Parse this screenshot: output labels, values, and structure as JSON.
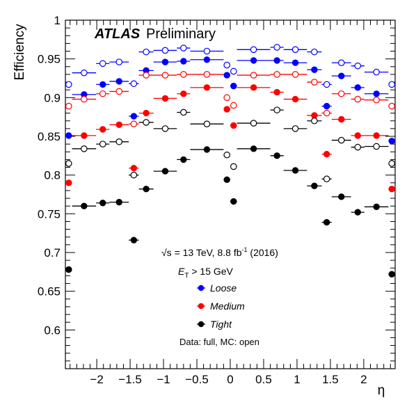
{
  "chart_data": {
    "type": "scatter",
    "title": "",
    "brand": "ATLAS",
    "subtitle": "Preliminary",
    "xlabel": "η",
    "ylabel": "Efficiency",
    "xlim": [
      -2.47,
      2.47
    ],
    "ylim": [
      0.55,
      1.0
    ],
    "x_ticks": [
      -2,
      -1.5,
      -1,
      -0.5,
      0,
      0.5,
      1,
      1.5,
      2
    ],
    "x_tick_labels": [
      "−2",
      "−1.5",
      "−1",
      "−0.5",
      "0",
      "0.5",
      "1",
      "1.5",
      "2"
    ],
    "y_ticks": [
      0.6,
      0.65,
      0.7,
      0.75,
      0.8,
      0.85,
      0.9,
      0.95,
      1.0
    ],
    "y_tick_labels": [
      "0.6",
      "0.65",
      "0.7",
      "0.75",
      "0.8",
      "0.85",
      "0.9",
      "0.95",
      "1"
    ],
    "grid": false,
    "bins": [
      [
        -2.47,
        -2.37
      ],
      [
        -2.37,
        -2.01
      ],
      [
        -2.01,
        -1.81
      ],
      [
        -1.81,
        -1.52
      ],
      [
        -1.52,
        -1.37
      ],
      [
        -1.37,
        -1.15
      ],
      [
        -1.15,
        -0.8
      ],
      [
        -0.8,
        -0.6
      ],
      [
        -0.6,
        -0.1
      ],
      [
        -0.1,
        0.0
      ],
      [
        0.0,
        0.1
      ],
      [
        0.1,
        0.6
      ],
      [
        0.6,
        0.8
      ],
      [
        0.8,
        1.15
      ],
      [
        1.15,
        1.37
      ],
      [
        1.37,
        1.52
      ],
      [
        1.52,
        1.81
      ],
      [
        1.81,
        2.01
      ],
      [
        2.01,
        2.37
      ],
      [
        2.37,
        2.47
      ]
    ],
    "annotations": {
      "energy": "√s = 13 TeV, 8.8 fb",
      "lumi_exp": "-1",
      "year": " (2016)",
      "cut_var": "E",
      "cut_sub": "T",
      "cut_rest": " > 15 GeV",
      "footer": "Data: full, MC: open"
    },
    "series": [
      {
        "name": "Loose",
        "sample": "data",
        "color": "#0000ff",
        "marker": "filled",
        "values": [
          0.851,
          0.904,
          0.917,
          0.921,
          0.876,
          0.935,
          0.946,
          0.947,
          0.949,
          0.929,
          0.915,
          0.948,
          0.948,
          0.945,
          0.936,
          0.889,
          0.928,
          0.913,
          0.905,
          0.844
        ]
      },
      {
        "name": "Loose",
        "sample": "mc",
        "color": "#0000ff",
        "marker": "open",
        "values": [
          0.917,
          0.932,
          0.944,
          0.946,
          0.918,
          0.959,
          0.961,
          0.964,
          0.96,
          0.942,
          0.934,
          0.962,
          0.965,
          0.962,
          0.959,
          0.917,
          0.945,
          0.941,
          0.933,
          0.917
        ]
      },
      {
        "name": "Medium",
        "sample": "data",
        "color": "#ff0000",
        "marker": "filled",
        "values": [
          0.79,
          0.851,
          0.859,
          0.865,
          0.809,
          0.88,
          0.899,
          0.905,
          0.913,
          0.885,
          0.864,
          0.913,
          0.907,
          0.898,
          0.877,
          0.827,
          0.872,
          0.851,
          0.851,
          0.782
        ]
      },
      {
        "name": "Medium",
        "sample": "mc",
        "color": "#ff0000",
        "marker": "open",
        "values": [
          0.889,
          0.898,
          0.905,
          0.908,
          0.866,
          0.929,
          0.929,
          0.93,
          0.93,
          0.9,
          0.89,
          0.929,
          0.93,
          0.93,
          0.92,
          0.88,
          0.905,
          0.898,
          0.897,
          0.889
        ]
      },
      {
        "name": "Tight",
        "sample": "data",
        "color": "#000000",
        "marker": "filled",
        "values": [
          0.678,
          0.76,
          0.764,
          0.765,
          0.716,
          0.782,
          0.805,
          0.82,
          0.833,
          0.794,
          0.766,
          0.834,
          0.825,
          0.806,
          0.786,
          0.739,
          0.772,
          0.752,
          0.759,
          0.672
        ]
      },
      {
        "name": "Tight",
        "sample": "mc",
        "color": "#000000",
        "marker": "open",
        "values": [
          0.815,
          0.834,
          0.84,
          0.843,
          0.8,
          0.868,
          0.86,
          0.881,
          0.866,
          0.826,
          0.811,
          0.867,
          0.884,
          0.86,
          0.87,
          0.795,
          0.845,
          0.836,
          0.837,
          0.815
        ]
      }
    ],
    "legend": [
      {
        "label": "Loose",
        "color": "#0000ff"
      },
      {
        "label": "Medium",
        "color": "#ff0000"
      },
      {
        "label": "Tight",
        "color": "#000000"
      }
    ]
  }
}
